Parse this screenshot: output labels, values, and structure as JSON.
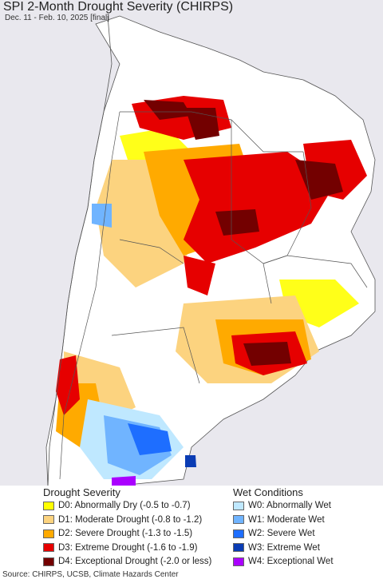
{
  "title": "SPI 2-Month Drought Severity (CHIRPS)",
  "subtitle": "Dec. 11 - Feb. 10, 2025 [final]",
  "legend": {
    "drought_heading": "Drought Severity",
    "wet_heading": "Wet Conditions",
    "drought_items": [
      {
        "label": "D0: Abnormally Dry (-0.5 to -0.7)",
        "color": "#ffff00"
      },
      {
        "label": "D1: Moderate Drought (-0.8 to -1.2)",
        "color": "#fcd37f"
      },
      {
        "label": "D2: Severe Drought (-1.3 to -1.5)",
        "color": "#ffaa00"
      },
      {
        "label": "D3: Extreme Drought (-1.6 to -1.9)",
        "color": "#e60000"
      },
      {
        "label": "D4: Exceptional Drought (-2.0 or less)",
        "color": "#730000"
      }
    ],
    "wet_items": [
      {
        "label": "W0: Abnormally Wet",
        "color": "#bfe8ff"
      },
      {
        "label": "W1: Moderate Wet",
        "color": "#70b4ff"
      },
      {
        "label": "W2: Severe Wet",
        "color": "#1e6eff"
      },
      {
        "label": "W3: Extreme Wet",
        "color": "#0a3cb4"
      },
      {
        "label": "W4: Exceptional Wet",
        "color": "#aa00ff"
      }
    ]
  },
  "source": "Source: CHIRPS, UCSB, Climate Hazards Center",
  "colors": {
    "ocean_background": "#e8e8ee",
    "land_background": "#ffffff",
    "border_color": "#555555"
  }
}
